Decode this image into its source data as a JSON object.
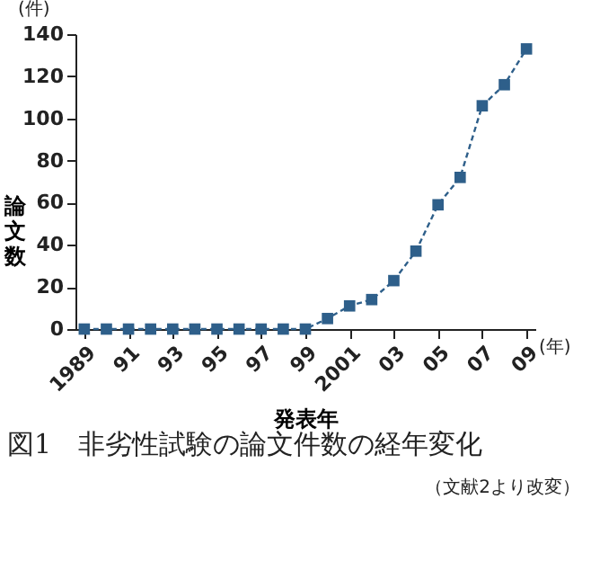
{
  "chart_data": {
    "type": "line",
    "title": "図1　非劣性試験の論文件数の経年変化",
    "xlabel": "発表年",
    "ylabel": "論文数",
    "annotations": [
      "(件)",
      "(年)",
      "（文献2より改変）"
    ],
    "x": [
      1989,
      1990,
      1991,
      1992,
      1993,
      1994,
      1995,
      1996,
      1997,
      1998,
      1999,
      2000,
      2001,
      2002,
      2003,
      2004,
      2005,
      2006,
      2007,
      2008,
      2009
    ],
    "series": [
      {
        "color": "#2e5f8a",
        "values": [
          0,
          0,
          0,
          0,
          0,
          0,
          0,
          0,
          0,
          0,
          0,
          5,
          11,
          14,
          23,
          37,
          59,
          72,
          106,
          116,
          133
        ]
      }
    ],
    "xlim": [
      1988.6,
      2009.4
    ],
    "xticks": [
      {
        "value": 1989,
        "label": "1989"
      },
      {
        "value": 1991,
        "label": "91"
      },
      {
        "value": 1993,
        "label": "93"
      },
      {
        "value": 1995,
        "label": "95"
      },
      {
        "value": 1997,
        "label": "97"
      },
      {
        "value": 1999,
        "label": "99"
      },
      {
        "value": 2001,
        "label": "2001"
      },
      {
        "value": 2003,
        "label": "03"
      },
      {
        "value": 2005,
        "label": "05"
      },
      {
        "value": 2007,
        "label": "07"
      },
      {
        "value": 2009,
        "label": "09"
      }
    ],
    "ylim": [
      0,
      140
    ],
    "yticks": [
      0,
      20,
      40,
      60,
      80,
      100,
      120,
      140
    ],
    "grid": false,
    "marker": "square",
    "line_style": "dashed"
  }
}
